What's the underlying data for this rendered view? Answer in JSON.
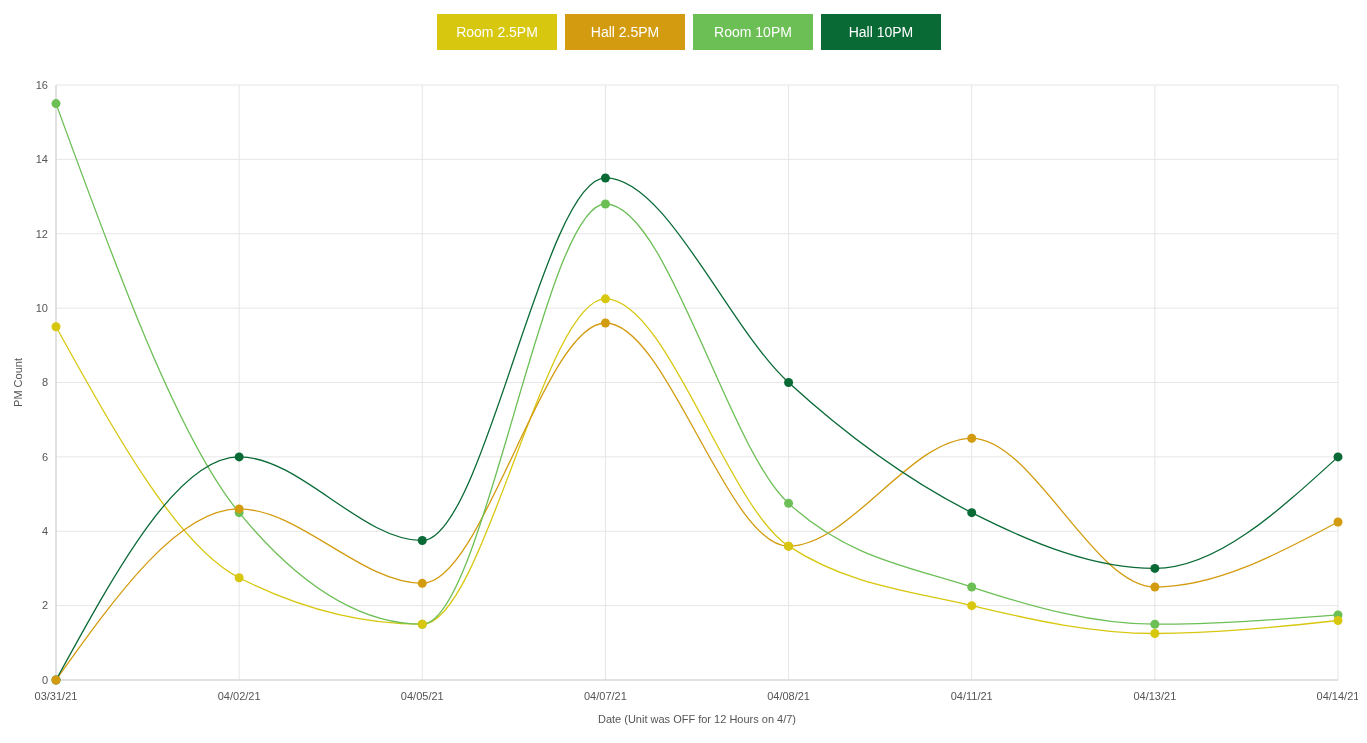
{
  "chart_data": {
    "type": "line",
    "xlabel": "Date (Unit was OFF for 12 Hours on 4/7)",
    "ylabel": "PM Count",
    "categories": [
      "03/31/21",
      "04/02/21",
      "04/05/21",
      "04/07/21",
      "04/08/21",
      "04/11/21",
      "04/13/21",
      "04/14/21"
    ],
    "series": [
      {
        "name": "Room 2.5PM",
        "color": "#d8c70f",
        "values": [
          9.5,
          2.75,
          1.5,
          10.25,
          3.6,
          2.0,
          1.25,
          1.6
        ]
      },
      {
        "name": "Hall 2.5PM",
        "color": "#d39b0f",
        "values": [
          0,
          4.6,
          2.6,
          9.6,
          3.6,
          6.5,
          2.5,
          4.25
        ]
      },
      {
        "name": "Room 10PM",
        "color": "#6cbf55",
        "values": [
          15.5,
          4.5,
          1.5,
          12.8,
          4.75,
          2.5,
          1.5,
          1.75
        ]
      },
      {
        "name": "Hall 10PM",
        "color": "#0a6a36",
        "values": [
          0,
          6,
          3.75,
          13.5,
          8,
          4.5,
          3,
          6
        ]
      }
    ],
    "ylim": [
      0,
      16
    ],
    "yticks": [
      0,
      2,
      4,
      6,
      8,
      10,
      12,
      14,
      16
    ],
    "grid": true,
    "legend": "top",
    "marker": "circle",
    "line_style": "solid"
  }
}
